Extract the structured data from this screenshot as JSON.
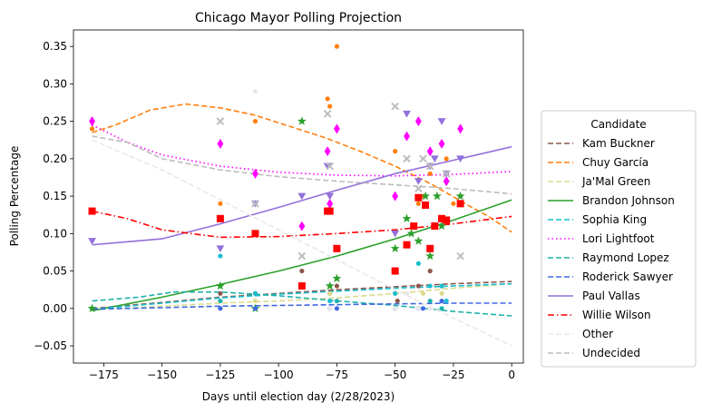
{
  "chart_data": {
    "type": "scatter",
    "title": "Chicago Mayor Polling Projection",
    "xlabel": "Days until election day (2/28/2023)",
    "ylabel": "Polling Percentage",
    "xlim": [
      -188,
      5
    ],
    "ylim": [
      -0.073,
      0.372
    ],
    "xticks": [
      -175,
      -150,
      -125,
      -100,
      -75,
      -50,
      -25,
      0
    ],
    "xtick_labels": [
      "−175",
      "−150",
      "−125",
      "−100",
      "−75",
      "−50",
      "−25",
      "0"
    ],
    "yticks": [
      -0.05,
      0.0,
      0.05,
      0.1,
      0.15,
      0.2,
      0.25,
      0.3,
      0.35
    ],
    "ytick_labels": [
      "−0.05",
      "0.00",
      "0.05",
      "0.10",
      "0.15",
      "0.20",
      "0.25",
      "0.30",
      "0.35"
    ],
    "grid": false,
    "legend": {
      "title": "Candidate",
      "placement": "right, outside plot"
    },
    "series": [
      {
        "name": "Kam Buckner",
        "color": "#8c564b",
        "dash": "dashed",
        "marker": "dot",
        "curve": [
          [
            -180,
            0.0
          ],
          [
            -150,
            0.008
          ],
          [
            -125,
            0.015
          ],
          [
            -100,
            0.02
          ],
          [
            -75,
            0.025
          ],
          [
            -50,
            0.029
          ],
          [
            -25,
            0.033
          ],
          [
            0,
            0.036
          ]
        ],
        "points": [
          [
            -125,
            0.02
          ],
          [
            -110,
            0.02
          ],
          [
            -90,
            0.05
          ],
          [
            -78,
            0.02
          ],
          [
            -75,
            0.03
          ],
          [
            -49,
            0.01
          ],
          [
            -40,
            0.03
          ],
          [
            -35,
            0.05
          ],
          [
            -30,
            0.03
          ]
        ]
      },
      {
        "name": "Chuy García",
        "color": "#ff7f0e",
        "dash": "dashed",
        "marker": "dot",
        "curve": [
          [
            -180,
            0.235
          ],
          [
            -170,
            0.245
          ],
          [
            -155,
            0.265
          ],
          [
            -140,
            0.273
          ],
          [
            -125,
            0.268
          ],
          [
            -110,
            0.258
          ],
          [
            -95,
            0.243
          ],
          [
            -80,
            0.228
          ],
          [
            -65,
            0.21
          ],
          [
            -50,
            0.19
          ],
          [
            -35,
            0.167
          ],
          [
            -20,
            0.14
          ],
          [
            -10,
            0.123
          ],
          [
            0,
            0.102
          ]
        ],
        "points": [
          [
            -180,
            0.24
          ],
          [
            -125,
            0.14
          ],
          [
            -110,
            0.25
          ],
          [
            -79,
            0.28
          ],
          [
            -78,
            0.27
          ],
          [
            -75,
            0.35
          ],
          [
            -50,
            0.21
          ],
          [
            -40,
            0.14
          ],
          [
            -38,
            0.15
          ],
          [
            -35,
            0.18
          ],
          [
            -28,
            0.2
          ],
          [
            -25,
            0.14
          ]
        ]
      },
      {
        "name": "Ja'Mal Green",
        "color": "#dbdb8d",
        "dash": "dashed",
        "marker": "dot",
        "curve": [
          [
            -180,
            -0.002
          ],
          [
            -150,
            0.003
          ],
          [
            -125,
            0.007
          ],
          [
            -100,
            0.01
          ],
          [
            -75,
            0.014
          ],
          [
            -50,
            0.02
          ],
          [
            -25,
            0.027
          ],
          [
            0,
            0.033
          ]
        ],
        "points": [
          [
            -110,
            0.01
          ],
          [
            -78,
            0.02
          ],
          [
            -50,
            0.02
          ],
          [
            -38,
            0.02
          ],
          [
            -30,
            0.02
          ]
        ]
      },
      {
        "name": "Brandon Johnson",
        "color": "#2ca02c",
        "dash": "solid",
        "marker": "star",
        "curve": [
          [
            -180,
            -0.003
          ],
          [
            -150,
            0.015
          ],
          [
            -125,
            0.032
          ],
          [
            -100,
            0.05
          ],
          [
            -75,
            0.07
          ],
          [
            -50,
            0.093
          ],
          [
            -25,
            0.118
          ],
          [
            0,
            0.145
          ]
        ],
        "points": [
          [
            -180,
            0.0
          ],
          [
            -125,
            0.03
          ],
          [
            -110,
            0.0
          ],
          [
            -90,
            0.25
          ],
          [
            -78,
            0.03
          ],
          [
            -75,
            0.04
          ],
          [
            -50,
            0.08
          ],
          [
            -45,
            0.12
          ],
          [
            -43,
            0.1
          ],
          [
            -40,
            0.09
          ],
          [
            -37,
            0.15
          ],
          [
            -35,
            0.07
          ],
          [
            -32,
            0.15
          ],
          [
            -30,
            0.11
          ],
          [
            -22,
            0.15
          ]
        ]
      },
      {
        "name": "Sophia King",
        "color": "#17becf",
        "dash": "dashed",
        "marker": "dot",
        "curve": [
          [
            -180,
            -0.001
          ],
          [
            -150,
            0.007
          ],
          [
            -125,
            0.014
          ],
          [
            -100,
            0.019
          ],
          [
            -75,
            0.023
          ],
          [
            -50,
            0.027
          ],
          [
            -25,
            0.03
          ],
          [
            0,
            0.033
          ]
        ],
        "points": [
          [
            -125,
            0.07
          ],
          [
            -110,
            0.02
          ],
          [
            -78,
            0.01
          ],
          [
            -50,
            0.02
          ],
          [
            -40,
            0.06
          ],
          [
            -35,
            0.03
          ],
          [
            -30,
            0.03
          ],
          [
            -28,
            0.01
          ]
        ]
      },
      {
        "name": "Lori Lightfoot",
        "color": "#ff00ff",
        "dash": "dotted",
        "marker": "diamond",
        "curve": [
          [
            -180,
            0.245
          ],
          [
            -165,
            0.222
          ],
          [
            -150,
            0.205
          ],
          [
            -125,
            0.19
          ],
          [
            -100,
            0.182
          ],
          [
            -75,
            0.178
          ],
          [
            -50,
            0.177
          ],
          [
            -25,
            0.179
          ],
          [
            0,
            0.183
          ]
        ],
        "points": [
          [
            -180,
            0.25
          ],
          [
            -125,
            0.22
          ],
          [
            -110,
            0.18
          ],
          [
            -90,
            0.11
          ],
          [
            -79,
            0.21
          ],
          [
            -78,
            0.14
          ],
          [
            -75,
            0.24
          ],
          [
            -50,
            0.15
          ],
          [
            -45,
            0.23
          ],
          [
            -40,
            0.25
          ],
          [
            -35,
            0.21
          ],
          [
            -30,
            0.22
          ],
          [
            -28,
            0.17
          ],
          [
            -22,
            0.24
          ]
        ]
      },
      {
        "name": "Raymond Lopez",
        "color": "#20b2aa",
        "dash": "dashed",
        "marker": "dot",
        "curve": [
          [
            -180,
            0.01
          ],
          [
            -160,
            0.015
          ],
          [
            -145,
            0.022
          ],
          [
            -125,
            0.022
          ],
          [
            -100,
            0.017
          ],
          [
            -75,
            0.01
          ],
          [
            -50,
            0.004
          ],
          [
            -25,
            -0.004
          ],
          [
            0,
            -0.01
          ]
        ],
        "points": [
          [
            -125,
            0.01
          ],
          [
            -110,
            0.0
          ],
          [
            -75,
            0.01
          ],
          [
            -50,
            0.0
          ],
          [
            -40,
            0.0
          ],
          [
            -35,
            0.01
          ],
          [
            -30,
            0.0
          ]
        ]
      },
      {
        "name": "Roderick Sawyer",
        "color": "#4169e1",
        "dash": "dashed",
        "marker": "dot",
        "curve": [
          [
            -180,
            -0.001
          ],
          [
            -150,
            0.001
          ],
          [
            -125,
            0.003
          ],
          [
            -100,
            0.004
          ],
          [
            -75,
            0.005
          ],
          [
            -50,
            0.006
          ],
          [
            -25,
            0.007
          ],
          [
            0,
            0.007
          ]
        ],
        "points": [
          [
            -125,
            0.0
          ],
          [
            -110,
            0.0
          ],
          [
            -78,
            0.0
          ],
          [
            -75,
            0.0
          ],
          [
            -50,
            0.0
          ],
          [
            -40,
            0.0
          ],
          [
            -38,
            0.0
          ],
          [
            -30,
            0.01
          ]
        ]
      },
      {
        "name": "Paul Vallas",
        "color": "#9370db",
        "dash": "solid",
        "marker": "triangle",
        "curve": [
          [
            -180,
            0.085
          ],
          [
            -150,
            0.093
          ],
          [
            -125,
            0.113
          ],
          [
            -100,
            0.135
          ],
          [
            -75,
            0.158
          ],
          [
            -50,
            0.18
          ],
          [
            -25,
            0.198
          ],
          [
            0,
            0.216
          ]
        ],
        "points": [
          [
            -180,
            0.09
          ],
          [
            -125,
            0.08
          ],
          [
            -110,
            0.14
          ],
          [
            -90,
            0.15
          ],
          [
            -79,
            0.19
          ],
          [
            -78,
            0.15
          ],
          [
            -50,
            0.1
          ],
          [
            -45,
            0.26
          ],
          [
            -40,
            0.17
          ],
          [
            -35,
            0.19
          ],
          [
            -33,
            0.2
          ],
          [
            -30,
            0.25
          ],
          [
            -28,
            0.18
          ],
          [
            -22,
            0.2
          ]
        ]
      },
      {
        "name": "Willie Wilson",
        "color": "#ff0000",
        "dash": "dashdot",
        "marker": "square",
        "curve": [
          [
            -180,
            0.13
          ],
          [
            -165,
            0.12
          ],
          [
            -150,
            0.105
          ],
          [
            -125,
            0.095
          ],
          [
            -100,
            0.096
          ],
          [
            -75,
            0.1
          ],
          [
            -50,
            0.105
          ],
          [
            -25,
            0.113
          ],
          [
            0,
            0.123
          ]
        ],
        "points": [
          [
            -180,
            0.13
          ],
          [
            -125,
            0.12
          ],
          [
            -110,
            0.1
          ],
          [
            -90,
            0.03
          ],
          [
            -79,
            0.13
          ],
          [
            -78,
            0.13
          ],
          [
            -75,
            0.08
          ],
          [
            -50,
            0.05
          ],
          [
            -45,
            0.085
          ],
          [
            -42,
            0.11
          ],
          [
            -40,
            0.148
          ],
          [
            -37,
            0.138
          ],
          [
            -35,
            0.08
          ],
          [
            -33,
            0.11
          ],
          [
            -30,
            0.12
          ],
          [
            -28,
            0.118
          ],
          [
            -22,
            0.14
          ]
        ]
      },
      {
        "name": "Other",
        "color": "#e8e8e8",
        "dash": "dashed",
        "marker": "dot",
        "curve": [
          [
            -180,
            0.225
          ],
          [
            -150,
            0.185
          ],
          [
            -125,
            0.145
          ],
          [
            -100,
            0.105
          ],
          [
            -75,
            0.065
          ],
          [
            -50,
            0.025
          ],
          [
            -25,
            -0.013
          ],
          [
            0,
            -0.05
          ]
        ],
        "points": [
          [
            -110,
            0.29
          ],
          [
            -78,
            0.0
          ],
          [
            -50,
            0.0
          ],
          [
            -45,
            0.02
          ],
          [
            -40,
            0.0
          ],
          [
            -35,
            0.0
          ]
        ]
      },
      {
        "name": "Undecided",
        "color": "#bdbdbd",
        "dash": "dashed",
        "marker": "x",
        "curve": [
          [
            -180,
            0.23
          ],
          [
            -165,
            0.222
          ],
          [
            -150,
            0.2
          ],
          [
            -125,
            0.185
          ],
          [
            -100,
            0.176
          ],
          [
            -75,
            0.17
          ],
          [
            -50,
            0.165
          ],
          [
            -25,
            0.16
          ],
          [
            0,
            0.153
          ]
        ],
        "points": [
          [
            -125,
            0.25
          ],
          [
            -110,
            0.14
          ],
          [
            -90,
            0.07
          ],
          [
            -79,
            0.26
          ],
          [
            -78,
            0.19
          ],
          [
            -50,
            0.27
          ],
          [
            -45,
            0.2
          ],
          [
            -40,
            0.16
          ],
          [
            -38,
            0.2
          ],
          [
            -35,
            0.19
          ],
          [
            -28,
            0.18
          ],
          [
            -22,
            0.07
          ]
        ]
      }
    ]
  }
}
